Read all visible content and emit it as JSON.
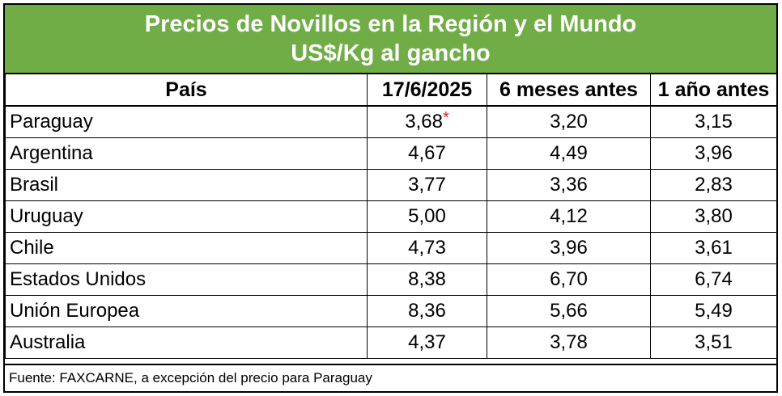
{
  "title": {
    "line1": "Precios de Novillos en la Región y el Mundo",
    "line2": "US$/Kg al gancho"
  },
  "colors": {
    "header_bg": "#70ad47",
    "header_text": "#ffffff",
    "asterisk": "#e02020"
  },
  "table": {
    "headers": [
      "País",
      "17/6/2025",
      "6 meses antes",
      "1 año antes"
    ],
    "rows": [
      {
        "country": "Paraguay",
        "current": "3,68",
        "note": "*",
        "six_months": "3,20",
        "one_year": "3,15"
      },
      {
        "country": "Argentina",
        "current": "4,67",
        "note": "",
        "six_months": "4,49",
        "one_year": "3,96"
      },
      {
        "country": "Brasil",
        "current": "3,77",
        "note": "",
        "six_months": "3,36",
        "one_year": "2,83"
      },
      {
        "country": "Uruguay",
        "current": "5,00",
        "note": "",
        "six_months": "4,12",
        "one_year": "3,80"
      },
      {
        "country": "Chile",
        "current": "4,73",
        "note": "",
        "six_months": "3,96",
        "one_year": "3,61"
      },
      {
        "country": "Estados Unidos",
        "current": "8,38",
        "note": "",
        "six_months": "6,70",
        "one_year": "6,74"
      },
      {
        "country": "Unión Europea",
        "current": "8,36",
        "note": "",
        "six_months": "5,66",
        "one_year": "5,49"
      },
      {
        "country": "Australia",
        "current": "4,37",
        "note": "",
        "six_months": "3,78",
        "one_year": "3,51"
      }
    ]
  },
  "footer": "Fuente: FAXCARNE, a excepción del precio para Paraguay"
}
